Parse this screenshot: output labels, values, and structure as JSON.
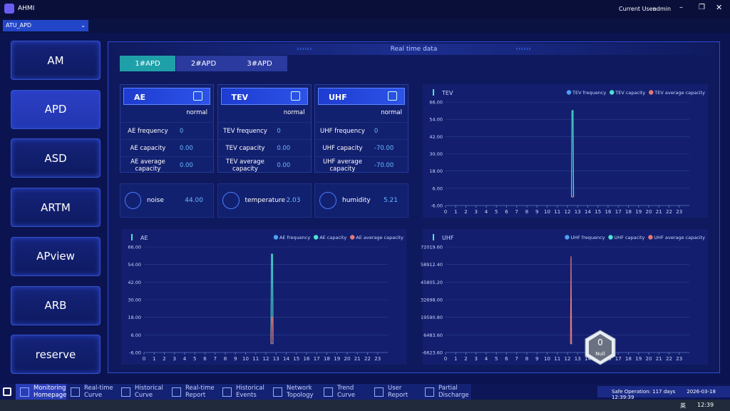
{
  "app": {
    "title": "AHMI",
    "user_label": "Current User:",
    "user": "admin",
    "device": "ATU_APD"
  },
  "sidebar": [
    "AM",
    "APD",
    "ASD",
    "ARTM",
    "APview",
    "ARB",
    "reserve"
  ],
  "panel": {
    "title": "Real time data",
    "tabs": [
      "1#APD",
      "2#APD",
      "3#APD"
    ]
  },
  "cards": [
    {
      "name": "AE",
      "status": "normal",
      "rows": [
        [
          "AE frequency",
          "0"
        ],
        [
          "AE capacity",
          "0.00"
        ],
        [
          "AE average capacity",
          "0.00"
        ]
      ]
    },
    {
      "name": "TEV",
      "status": "normal",
      "rows": [
        [
          "TEV frequency",
          "0"
        ],
        [
          "TEV capacity",
          "0.00"
        ],
        [
          "TEV average capacity",
          "0.00"
        ]
      ]
    },
    {
      "name": "UHF",
      "status": "normal",
      "rows": [
        [
          "UHF frequency",
          "0"
        ],
        [
          "UHF capacity",
          "-70.00"
        ],
        [
          "UHF average capacity",
          "-70.00"
        ]
      ]
    }
  ],
  "sensors": [
    [
      "noise",
      "44.00"
    ],
    [
      "temperature",
      "2.03"
    ],
    [
      "humidity",
      "5.21"
    ]
  ],
  "chart_data": [
    {
      "type": "line",
      "title": "TEV",
      "x": [
        12.4,
        12.45,
        12.55,
        12.6
      ],
      "series": [
        {
          "name": "TEV frequency",
          "color": "#4f9ff5",
          "values": [
            0,
            0,
            0,
            0
          ]
        },
        {
          "name": "TEV capacity",
          "color": "#4fe3d2",
          "values": [
            0,
            60,
            60,
            0
          ]
        },
        {
          "name": "TEV average capacity",
          "color": "#e67878",
          "values": [
            0,
            0,
            0,
            0
          ]
        }
      ],
      "xlim": [
        0,
        24
      ],
      "xticks": [
        0,
        1,
        2,
        3,
        4,
        5,
        6,
        7,
        8,
        9,
        10,
        11,
        12,
        13,
        14,
        15,
        16,
        17,
        18,
        19,
        20,
        21,
        22,
        23
      ],
      "ylim": [
        -6,
        66
      ],
      "yticks": [
        {
          "value": -6,
          "label": "-6.00"
        },
        {
          "value": 6,
          "label": "6.00"
        },
        {
          "value": 18,
          "label": "18.00"
        },
        {
          "value": 30,
          "label": "30.00"
        },
        {
          "value": 42,
          "label": "42.00"
        },
        {
          "value": 54,
          "label": "54.00"
        },
        {
          "value": 66,
          "label": "66.00"
        }
      ],
      "grid": true
    },
    {
      "type": "line",
      "title": "AE",
      "x": [
        12.5,
        12.55,
        12.65,
        12.7
      ],
      "series": [
        {
          "name": "AE frequency",
          "color": "#4f9ff5",
          "values": [
            0,
            0,
            0,
            0
          ]
        },
        {
          "name": "AE capacity",
          "color": "#4fe3d2",
          "values": [
            0,
            61,
            61,
            0
          ]
        },
        {
          "name": "AE average capacity",
          "color": "#e67878",
          "values": [
            0,
            18,
            18,
            0
          ]
        }
      ],
      "xlim": [
        0,
        24
      ],
      "xticks": [
        0,
        1,
        2,
        3,
        4,
        5,
        6,
        7,
        8,
        9,
        10,
        11,
        12,
        13,
        14,
        15,
        16,
        17,
        18,
        19,
        20,
        21,
        22,
        23
      ],
      "ylim": [
        -6,
        66
      ],
      "yticks": [
        {
          "value": -6,
          "label": "-6.00"
        },
        {
          "value": 6,
          "label": "6.00"
        },
        {
          "value": 18,
          "label": "18.00"
        },
        {
          "value": 30,
          "label": "30.00"
        },
        {
          "value": 42,
          "label": "42.00"
        },
        {
          "value": 54,
          "label": "54.00"
        },
        {
          "value": 66,
          "label": "66.00"
        }
      ],
      "grid": true
    },
    {
      "type": "line",
      "title": "UHF",
      "x": [
        12.3,
        12.35,
        12.4,
        12.45
      ],
      "series": [
        {
          "name": "UHF frequency",
          "color": "#4f9ff5",
          "values": [
            0,
            0,
            0,
            0
          ]
        },
        {
          "name": "UHF capacity",
          "color": "#4fe3d2",
          "values": [
            -70,
            -70,
            -70,
            -70
          ]
        },
        {
          "name": "UHF average capacity",
          "color": "#e67878",
          "values": [
            0,
            65000,
            0,
            0
          ]
        }
      ],
      "xlim": [
        0,
        24
      ],
      "xticks": [
        0,
        1,
        2,
        3,
        4,
        5,
        6,
        7,
        8,
        9,
        10,
        11,
        12,
        13,
        14,
        15,
        16,
        17,
        18,
        19,
        20,
        21,
        22,
        23
      ],
      "ylim": [
        -6623.6,
        72019.6
      ],
      "yticks": [
        {
          "value": -6623.6,
          "label": "-6623.60"
        },
        {
          "value": 6483.6,
          "label": "6483.60"
        },
        {
          "value": 19590.8,
          "label": "19590.80"
        },
        {
          "value": 32698,
          "label": "32698.00"
        },
        {
          "value": 45805.2,
          "label": "45805.20"
        },
        {
          "value": 58912.4,
          "label": "58912.40"
        },
        {
          "value": 72019.6,
          "label": "72019.60"
        }
      ],
      "grid": true
    }
  ],
  "badge": {
    "value": "0",
    "label": "Null"
  },
  "nav": [
    "Monitoring Homepage",
    "Real-time Curve",
    "Historical Curve",
    "Real-time Report",
    "Historical Events",
    "Network Topology",
    "Trend Curve",
    "User Report",
    "Partial Discharge"
  ],
  "status": {
    "safe": "Safe Operation: 117 days",
    "time": "2026-03-18 12:39:39"
  },
  "taskbar": {
    "ime": "英",
    "clock": "12:39"
  }
}
